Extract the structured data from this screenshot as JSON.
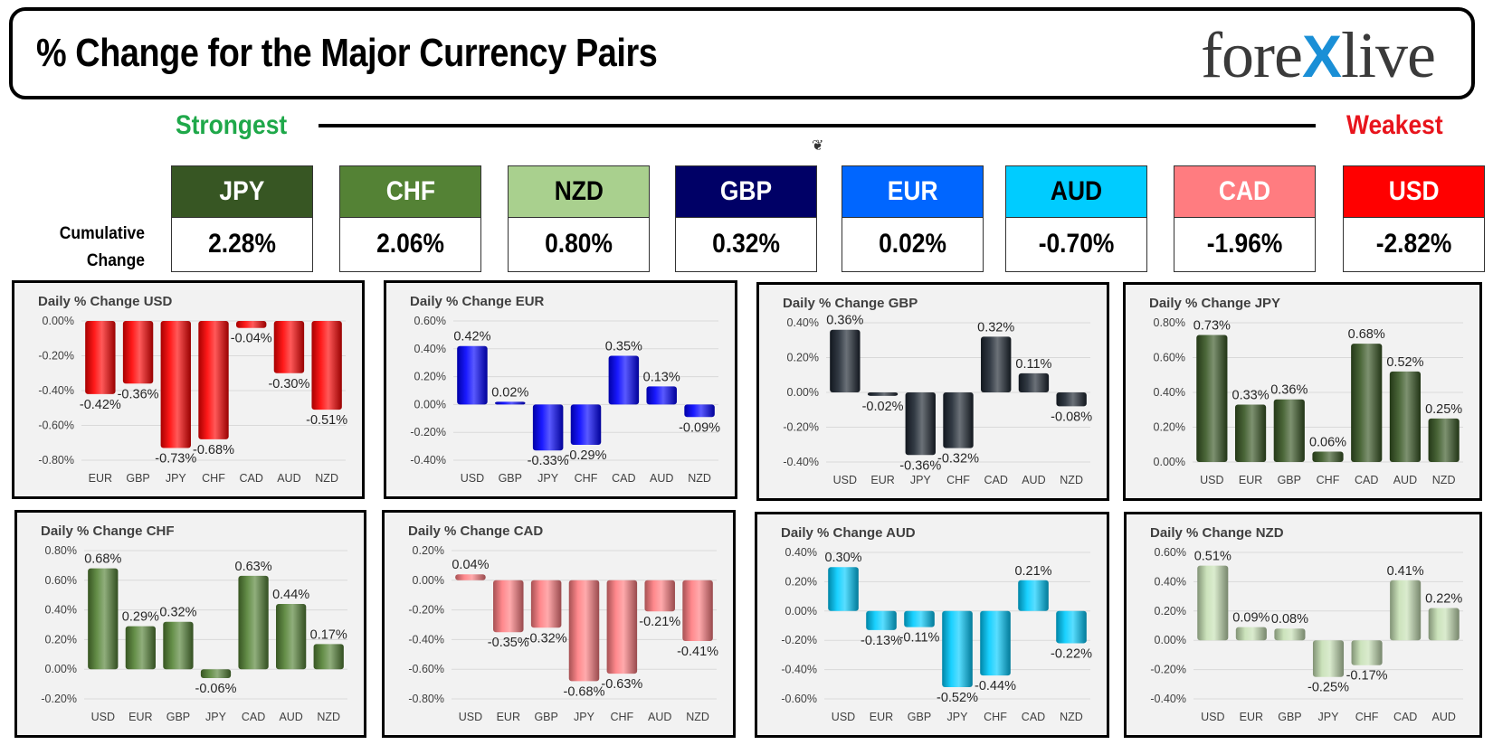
{
  "header": {
    "title": "% Change for the Major Currency Pairs",
    "logo_left": "fore",
    "logo_x": "X",
    "logo_right": "live"
  },
  "ranking": {
    "strongest_label": "Strongest",
    "weakest_label": "Weakest",
    "cumulative_label_1": "Cumulative",
    "cumulative_label_2": "Change",
    "cards": [
      {
        "currency": "JPY",
        "value": "2.28%",
        "bg": "#375623",
        "fg": "#ffffff"
      },
      {
        "currency": "CHF",
        "value": "2.06%",
        "bg": "#548235",
        "fg": "#ffffff"
      },
      {
        "currency": "NZD",
        "value": "0.80%",
        "bg": "#a9d08e",
        "fg": "#000000"
      },
      {
        "currency": "GBP",
        "value": "0.32%",
        "bg": "#000066",
        "fg": "#ffffff"
      },
      {
        "currency": "EUR",
        "value": "0.02%",
        "bg": "#0066ff",
        "fg": "#ffffff"
      },
      {
        "currency": "AUD",
        "value": "-0.70%",
        "bg": "#00ccff",
        "fg": "#000000"
      },
      {
        "currency": "CAD",
        "value": "-1.96%",
        "bg": "#ff7c80",
        "fg": "#ffffff"
      },
      {
        "currency": "USD",
        "value": "-2.82%",
        "bg": "#ff0000",
        "fg": "#ffffff"
      }
    ]
  },
  "chart_data": [
    {
      "type": "bar",
      "title": "Daily % Change USD",
      "categories": [
        "EUR",
        "GBP",
        "JPY",
        "CHF",
        "CAD",
        "AUD",
        "NZD"
      ],
      "values": [
        -0.42,
        -0.36,
        -0.73,
        -0.68,
        -0.04,
        -0.3,
        -0.51
      ],
      "labels": [
        "-0.42%",
        "-0.36%",
        "-0.73%",
        "-0.68%",
        "-0.04%",
        "-0.30%",
        "-0.51%"
      ],
      "yticks": [
        "0.00%",
        "-0.20%",
        "-0.40%",
        "-0.60%",
        "-0.80%"
      ],
      "ylim": [
        -0.8,
        0.0
      ],
      "color": "#ff0000",
      "grid": true
    },
    {
      "type": "bar",
      "title": "Daily % Change EUR",
      "categories": [
        "USD",
        "GBP",
        "JPY",
        "CHF",
        "CAD",
        "AUD",
        "NZD"
      ],
      "values": [
        0.42,
        0.02,
        -0.33,
        -0.29,
        0.35,
        0.13,
        -0.09
      ],
      "labels": [
        "0.42%",
        "0.02%",
        "-0.33%",
        "-0.29%",
        "0.35%",
        "0.13%",
        "-0.09%"
      ],
      "yticks": [
        "0.60%",
        "0.40%",
        "0.20%",
        "0.00%",
        "-0.20%",
        "-0.40%"
      ],
      "ylim": [
        -0.4,
        0.6
      ],
      "color": "#0000ff",
      "grid": true
    },
    {
      "type": "bar",
      "title": "Daily % Change GBP",
      "categories": [
        "USD",
        "EUR",
        "JPY",
        "CHF",
        "CAD",
        "AUD",
        "NZD"
      ],
      "values": [
        0.36,
        -0.02,
        -0.36,
        -0.32,
        0.32,
        0.11,
        -0.08
      ],
      "labels": [
        "0.36%",
        "-0.02%",
        "-0.36%",
        "-0.32%",
        "0.32%",
        "0.11%",
        "-0.08%"
      ],
      "yticks": [
        "0.40%",
        "0.20%",
        "0.00%",
        "-0.20%",
        "-0.40%"
      ],
      "ylim": [
        -0.4,
        0.4
      ],
      "color": "#1c2530",
      "grid": true
    },
    {
      "type": "bar",
      "title": "Daily % Change JPY",
      "categories": [
        "USD",
        "EUR",
        "GBP",
        "CHF",
        "CAD",
        "AUD",
        "NZD"
      ],
      "values": [
        0.73,
        0.33,
        0.36,
        0.06,
        0.68,
        0.52,
        0.25
      ],
      "labels": [
        "0.73%",
        "0.33%",
        "0.36%",
        "0.06%",
        "0.68%",
        "0.52%",
        "0.25%"
      ],
      "yticks": [
        "0.80%",
        "0.60%",
        "0.40%",
        "0.20%",
        "0.00%"
      ],
      "ylim": [
        0.0,
        0.8
      ],
      "color": "#375623",
      "grid": true
    },
    {
      "type": "bar",
      "title": "Daily % Change CHF",
      "categories": [
        "USD",
        "EUR",
        "GBP",
        "JPY",
        "CAD",
        "AUD",
        "NZD"
      ],
      "values": [
        0.68,
        0.29,
        0.32,
        -0.06,
        0.63,
        0.44,
        0.17
      ],
      "labels": [
        "0.68%",
        "0.29%",
        "0.32%",
        "-0.06%",
        "0.63%",
        "0.44%",
        "0.17%"
      ],
      "yticks": [
        "0.80%",
        "0.60%",
        "0.40%",
        "0.20%",
        "0.00%",
        "-0.20%"
      ],
      "ylim": [
        -0.2,
        0.8
      ],
      "color": "#548235",
      "grid": true
    },
    {
      "type": "bar",
      "title": "Daily % Change CAD",
      "categories": [
        "USD",
        "EUR",
        "GBP",
        "JPY",
        "CHF",
        "AUD",
        "NZD"
      ],
      "values": [
        0.04,
        -0.35,
        -0.32,
        -0.68,
        -0.63,
        -0.21,
        -0.41
      ],
      "labels": [
        "0.04%",
        "-0.35%",
        "-0.32%",
        "-0.68%",
        "-0.63%",
        "-0.21%",
        "-0.41%"
      ],
      "yticks": [
        "0.20%",
        "0.00%",
        "-0.20%",
        "-0.40%",
        "-0.60%",
        "-0.80%"
      ],
      "ylim": [
        -0.8,
        0.2
      ],
      "color": "#ff7c80",
      "grid": true
    },
    {
      "type": "bar",
      "title": "Daily % Change AUD",
      "categories": [
        "USD",
        "EUR",
        "GBP",
        "JPY",
        "CHF",
        "CAD",
        "NZD"
      ],
      "values": [
        0.3,
        -0.13,
        -0.11,
        -0.52,
        -0.44,
        0.21,
        -0.22
      ],
      "labels": [
        "0.30%",
        "-0.13%",
        "-0.11%",
        "-0.52%",
        "-0.44%",
        "0.21%",
        "-0.22%"
      ],
      "yticks": [
        "0.40%",
        "0.20%",
        "0.00%",
        "-0.20%",
        "-0.40%",
        "-0.60%"
      ],
      "ylim": [
        -0.6,
        0.4
      ],
      "color": "#00ccff",
      "grid": true
    },
    {
      "type": "bar",
      "title": "Daily % Change NZD",
      "categories": [
        "USD",
        "EUR",
        "GBP",
        "JPY",
        "CHF",
        "CAD",
        "AUD"
      ],
      "values": [
        0.51,
        0.09,
        0.08,
        -0.25,
        -0.17,
        0.41,
        0.22
      ],
      "labels": [
        "0.51%",
        "0.09%",
        "0.08%",
        "-0.25%",
        "-0.17%",
        "0.41%",
        "0.22%"
      ],
      "yticks": [
        "0.60%",
        "0.40%",
        "0.20%",
        "0.00%",
        "-0.20%",
        "-0.40%"
      ],
      "ylim": [
        -0.4,
        0.6
      ],
      "color": "#c6e0b4",
      "grid": true
    }
  ]
}
